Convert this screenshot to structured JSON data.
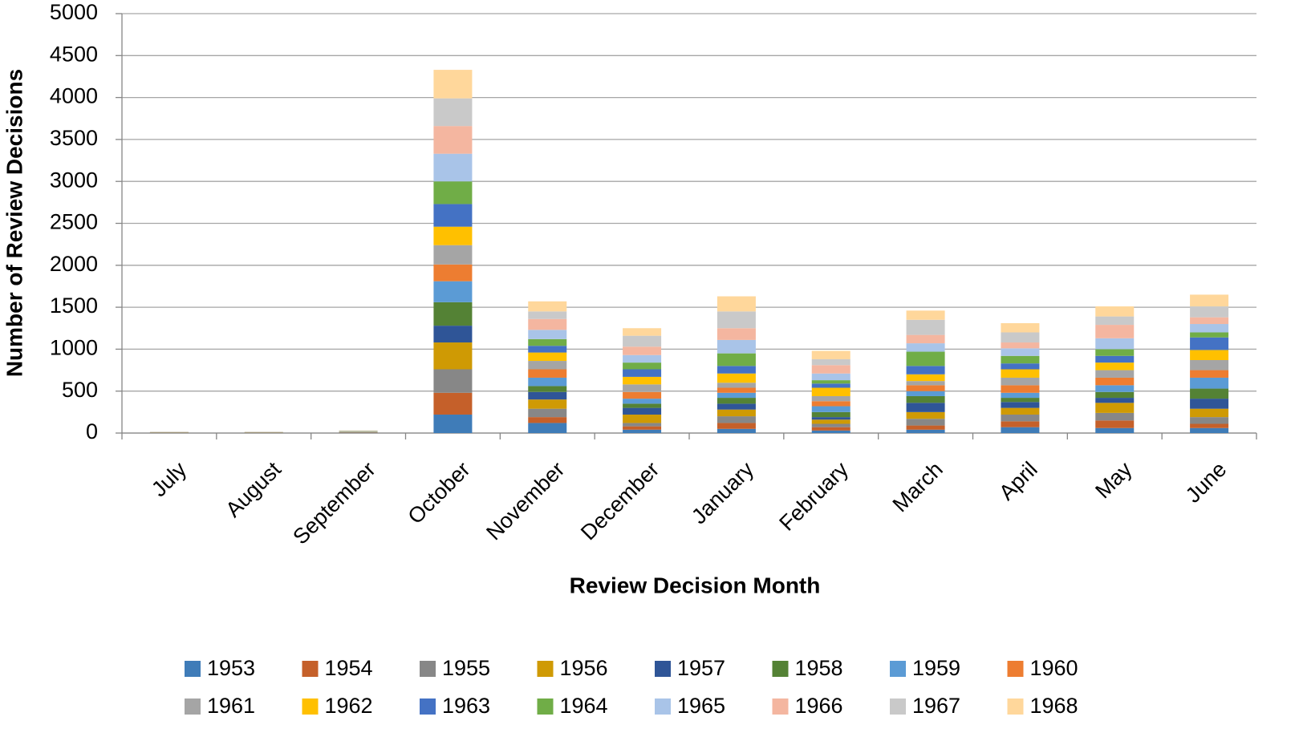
{
  "chart_data": {
    "type": "bar",
    "stacked": true,
    "x_label": "Review Decision Month",
    "y_label": "Number of Review Decisions",
    "categories": [
      "July",
      "August",
      "September",
      "October",
      "November",
      "December",
      "January",
      "February",
      "March",
      "April",
      "May",
      "June"
    ],
    "ylim": [
      0,
      5000
    ],
    "yticks": [
      0,
      500,
      1000,
      1500,
      2000,
      2500,
      3000,
      3500,
      4000,
      4500,
      5000
    ],
    "grid": true,
    "legend": "bottom",
    "series": [
      {
        "name": "1953",
        "color": "#3f7cb8",
        "values": [
          1,
          1,
          2,
          220,
          120,
          40,
          50,
          30,
          40,
          70,
          60,
          60
        ]
      },
      {
        "name": "1954",
        "color": "#c5602a",
        "values": [
          1,
          1,
          2,
          260,
          70,
          40,
          70,
          40,
          50,
          70,
          90,
          50
        ]
      },
      {
        "name": "1955",
        "color": "#878787",
        "values": [
          1,
          1,
          2,
          280,
          100,
          40,
          80,
          40,
          80,
          80,
          90,
          80
        ]
      },
      {
        "name": "1956",
        "color": "#cf9a04",
        "values": [
          1,
          1,
          2,
          320,
          110,
          100,
          80,
          50,
          80,
          80,
          120,
          100
        ]
      },
      {
        "name": "1957",
        "color": "#2f5597",
        "values": [
          1,
          1,
          2,
          200,
          90,
          80,
          70,
          30,
          110,
          70,
          60,
          120
        ]
      },
      {
        "name": "1958",
        "color": "#548235",
        "values": [
          1,
          1,
          2,
          280,
          70,
          50,
          70,
          60,
          80,
          50,
          70,
          120
        ]
      },
      {
        "name": "1959",
        "color": "#5b9bd5",
        "values": [
          1,
          1,
          2,
          250,
          100,
          60,
          60,
          70,
          60,
          60,
          80,
          130
        ]
      },
      {
        "name": "1960",
        "color": "#ed7d31",
        "values": [
          1,
          1,
          2,
          200,
          100,
          80,
          60,
          60,
          70,
          90,
          90,
          90
        ]
      },
      {
        "name": "1961",
        "color": "#a5a5a5",
        "values": [
          1,
          1,
          2,
          230,
          100,
          90,
          60,
          60,
          50,
          90,
          90,
          120
        ]
      },
      {
        "name": "1962",
        "color": "#ffc000",
        "values": [
          1,
          1,
          2,
          220,
          100,
          90,
          110,
          100,
          80,
          100,
          90,
          120
        ]
      },
      {
        "name": "1963",
        "color": "#4472c4",
        "values": [
          1,
          1,
          2,
          270,
          80,
          90,
          90,
          50,
          100,
          70,
          80,
          150
        ]
      },
      {
        "name": "1964",
        "color": "#70ad47",
        "values": [
          1,
          1,
          2,
          270,
          80,
          80,
          150,
          40,
          170,
          90,
          80,
          60
        ]
      },
      {
        "name": "1965",
        "color": "#a9c4e8",
        "values": [
          1,
          1,
          2,
          330,
          110,
          90,
          160,
          80,
          100,
          90,
          130,
          100
        ]
      },
      {
        "name": "1966",
        "color": "#f4b6a0",
        "values": [
          1,
          1,
          2,
          330,
          130,
          100,
          140,
          100,
          100,
          70,
          160,
          80
        ]
      },
      {
        "name": "1967",
        "color": "#c9c9c9",
        "values": [
          1,
          1,
          2,
          330,
          90,
          130,
          200,
          70,
          180,
          120,
          100,
          130
        ]
      },
      {
        "name": "1968",
        "color": "#ffd79b",
        "values": [
          1,
          1,
          2,
          340,
          120,
          90,
          180,
          100,
          110,
          110,
          120,
          140
        ]
      }
    ]
  }
}
